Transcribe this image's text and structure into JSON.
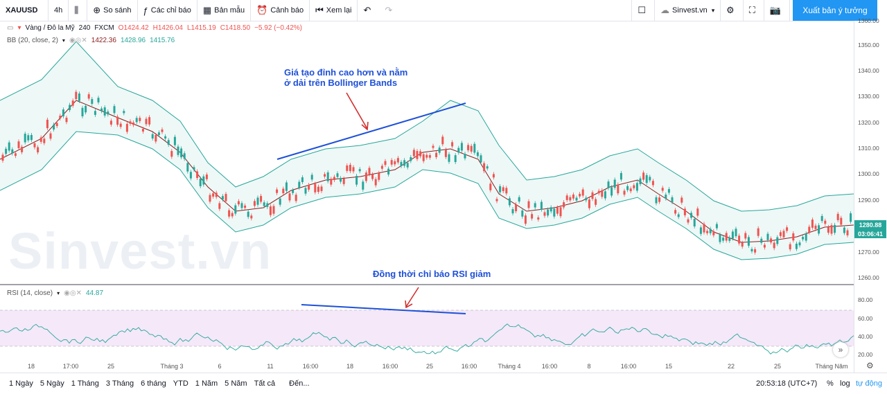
{
  "toolbar": {
    "symbol": "XAUUSD",
    "interval": "4h",
    "compare": "So sánh",
    "indicators": "Các chỉ báo",
    "templates": "Bản mẫu",
    "alert": "Cảnh báo",
    "replay": "Xem lại",
    "account": "Sinvest.vn",
    "publish": "Xuất bản ý tưởng"
  },
  "legend": {
    "main": "Vàng / Đô la Mỹ",
    "tf": "240",
    "exchange": "FXCM",
    "open": "O1424.42",
    "high": "H1426.04",
    "low": "L1415.19",
    "close": "C1418.50",
    "change": "−5.92 (−0.42%)",
    "bb_label": "BB (20, close, 2)",
    "bb_v1": "1422.36",
    "bb_v2": "1428.96",
    "bb_v3": "1415.76",
    "rsi_label": "RSI (14, close)",
    "rsi_value": "44.87"
  },
  "annotations": {
    "top_line1": "Giá tạo đỉnh cao hơn và nằm",
    "top_line2": "ở dải trên Bollinger Bands",
    "rsi": "Đồng thời chỉ báo RSI giảm"
  },
  "price_axis": [
    "1360.00",
    "1350.00",
    "1340.00",
    "1330.00",
    "1320.00",
    "1310.00",
    "1300.00",
    "1290.00",
    "1270.00",
    "1260.00"
  ],
  "price_tags": {
    "last": "1280.88",
    "countdown": "03:06:41"
  },
  "rsi_axis": [
    "80.00",
    "60.00",
    "40.00",
    "20.00"
  ],
  "time_axis": [
    "18",
    "17:00",
    "25",
    "Tháng 3",
    "6",
    "11",
    "16:00",
    "18",
    "16:00",
    "25",
    "16:00",
    "Tháng 4",
    "16:00",
    "8",
    "16:00",
    "15",
    "22",
    "25",
    "Tháng Năm"
  ],
  "watermark": "Sinvest.vn",
  "bottom": {
    "ranges": [
      "1 Ngày",
      "5 Ngày",
      "1 Tháng",
      "3 Tháng",
      "6 tháng",
      "YTD",
      "1 Năm",
      "5 Năm",
      "Tất cả"
    ],
    "goto": "Đến...",
    "clock": "20:53:18 (UTC+7)",
    "pct": "%",
    "log": "log",
    "auto": "tự động"
  },
  "colors": {
    "up": "#26a69a",
    "down": "#ef5350",
    "accent": "#2196f3",
    "band": "#26a69a",
    "rsi": "#7e57c2"
  }
}
